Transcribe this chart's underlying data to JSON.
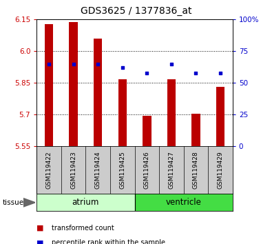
{
  "title": "GDS3625 / 1377836_at",
  "samples": [
    "GSM119422",
    "GSM119423",
    "GSM119424",
    "GSM119425",
    "GSM119426",
    "GSM119427",
    "GSM119428",
    "GSM119429"
  ],
  "transformed_count": [
    6.128,
    6.138,
    6.06,
    5.868,
    5.695,
    5.868,
    5.705,
    5.833
  ],
  "percentile_rank": [
    65,
    65,
    65,
    62,
    58,
    65,
    58,
    58
  ],
  "ylim_left": [
    5.55,
    6.15
  ],
  "ylim_right": [
    0,
    100
  ],
  "yticks_left": [
    5.55,
    5.7,
    5.85,
    6.0,
    6.15
  ],
  "yticks_right": [
    0,
    25,
    50,
    75,
    100
  ],
  "bar_color": "#bb0000",
  "dot_color": "#0000cc",
  "bar_bottom": 5.55,
  "groups": [
    {
      "label": "atrium",
      "samples": [
        0,
        1,
        2,
        3
      ],
      "color": "#ccffcc"
    },
    {
      "label": "ventricle",
      "samples": [
        4,
        5,
        6,
        7
      ],
      "color": "#44dd44"
    }
  ],
  "tissue_label": "tissue",
  "legend_items": [
    {
      "label": "transformed count",
      "color": "#bb0000"
    },
    {
      "label": "percentile rank within the sample",
      "color": "#0000cc"
    }
  ],
  "tick_color_left": "#cc0000",
  "tick_color_right": "#0000cc",
  "label_bg": "#cccccc"
}
